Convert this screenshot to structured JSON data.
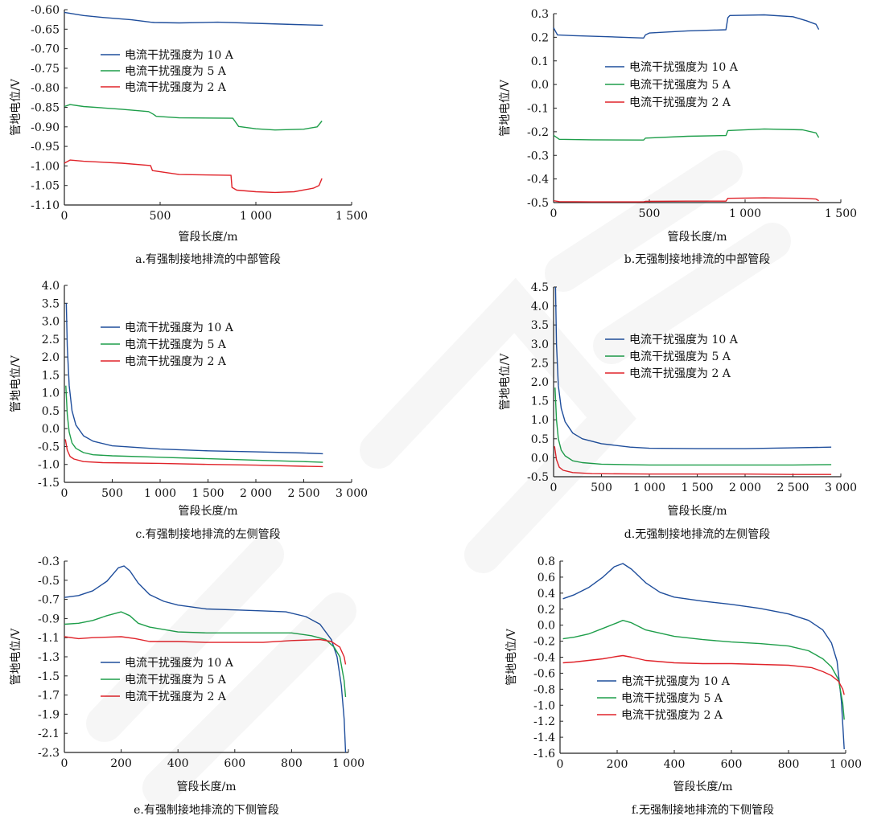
{
  "colors": {
    "blue": "#1f4e9c",
    "green": "#1e9e4a",
    "red": "#e0232a",
    "axis": "#222222"
  },
  "legend_labels": [
    "电流干扰强度为 10 A",
    "电流干扰强度为 5 A",
    "电流干扰强度为 2 A"
  ],
  "chart_data": [
    {
      "id": "a",
      "type": "line",
      "caption": "a.有强制接地排流的中部管段",
      "xlabel": "管段长度/m",
      "ylabel": "管地电位/V",
      "xlim": [
        0,
        1500
      ],
      "ylim": [
        -1.1,
        -0.6
      ],
      "xticks": [
        0,
        500,
        1000,
        1500
      ],
      "xtick_labels": [
        "0",
        "500",
        "1 000",
        "1 500"
      ],
      "yticks": [
        -0.6,
        -0.65,
        -0.7,
        -0.75,
        -0.8,
        -0.85,
        -0.9,
        -0.95,
        -1.0,
        -1.05,
        -1.1
      ],
      "ytick_labels": [
        "-0.60",
        "-0.65",
        "-0.70",
        "-0.75",
        "-0.80",
        "-0.85",
        "-0.90",
        "-0.95",
        "-1.00",
        "-1.05",
        "-1.10"
      ],
      "series": [
        {
          "name": "电流干扰强度为 10 A",
          "color": "blue",
          "x": [
            0,
            100,
            200,
            350,
            450,
            470,
            600,
            800,
            1000,
            1200,
            1350
          ],
          "y": [
            -0.607,
            -0.615,
            -0.62,
            -0.626,
            -0.632,
            -0.633,
            -0.634,
            -0.632,
            -0.635,
            -0.638,
            -0.64
          ]
        },
        {
          "name": "电流干扰强度为 5 A",
          "color": "green",
          "x": [
            0,
            30,
            100,
            300,
            440,
            465,
            480,
            600,
            880,
            890,
            910,
            1000,
            1100,
            1250,
            1320,
            1345
          ],
          "y": [
            -0.848,
            -0.843,
            -0.848,
            -0.855,
            -0.861,
            -0.868,
            -0.873,
            -0.877,
            -0.878,
            -0.885,
            -0.899,
            -0.905,
            -0.908,
            -0.906,
            -0.9,
            -0.885
          ]
        },
        {
          "name": "电流干扰强度为 2 A",
          "color": "red",
          "x": [
            0,
            30,
            100,
            300,
            450,
            460,
            600,
            870,
            875,
            900,
            1000,
            1100,
            1200,
            1300,
            1330,
            1345
          ],
          "y": [
            -0.993,
            -0.985,
            -0.988,
            -0.993,
            -0.999,
            -1.012,
            -1.022,
            -1.024,
            -1.055,
            -1.062,
            -1.066,
            -1.068,
            -1.066,
            -1.057,
            -1.05,
            -1.032
          ]
        }
      ]
    },
    {
      "id": "b",
      "type": "line",
      "caption": "b.无强制接地排流的中部管段",
      "xlabel": "管段长度/m",
      "ylabel": "管地电位/V",
      "xlim": [
        0,
        1500
      ],
      "ylim": [
        -0.5,
        0.3
      ],
      "xticks": [
        0,
        500,
        1000,
        1500
      ],
      "xtick_labels": [
        "0",
        "500",
        "1 000",
        "1 500"
      ],
      "yticks": [
        0.3,
        0.2,
        0.1,
        0.0,
        -0.1,
        -0.2,
        -0.3,
        -0.4,
        -0.5
      ],
      "ytick_labels": [
        "0.3",
        "0.2",
        "0.1",
        "0.0",
        "-0.1",
        "-0.2",
        "-0.3",
        "-0.4",
        "-0.5"
      ],
      "series": [
        {
          "name": "电流干扰强度为 10 A",
          "color": "blue",
          "x": [
            0,
            20,
            100,
            300,
            470,
            480,
            500,
            700,
            900,
            910,
            920,
            1100,
            1250,
            1320,
            1370,
            1385
          ],
          "y": [
            0.24,
            0.21,
            0.207,
            0.202,
            0.197,
            0.21,
            0.218,
            0.227,
            0.232,
            0.283,
            0.292,
            0.295,
            0.287,
            0.27,
            0.255,
            0.233
          ]
        },
        {
          "name": "电流干扰强度为 5 A",
          "color": "green",
          "x": [
            0,
            30,
            200,
            470,
            480,
            700,
            900,
            910,
            1100,
            1300,
            1370,
            1385
          ],
          "y": [
            -0.215,
            -0.232,
            -0.234,
            -0.235,
            -0.227,
            -0.219,
            -0.216,
            -0.195,
            -0.188,
            -0.192,
            -0.205,
            -0.225
          ]
        },
        {
          "name": "电流干扰强度为 2 A",
          "color": "red",
          "x": [
            0,
            30,
            200,
            470,
            480,
            700,
            900,
            910,
            1100,
            1300,
            1370,
            1385
          ],
          "y": [
            -0.492,
            -0.496,
            -0.497,
            -0.497,
            -0.495,
            -0.494,
            -0.494,
            -0.482,
            -0.48,
            -0.482,
            -0.485,
            -0.492
          ]
        }
      ]
    },
    {
      "id": "c",
      "type": "line",
      "caption": "c.有强制接地排流的左侧管段",
      "xlabel": "管段长度/m",
      "ylabel": "管地电位/V",
      "xlim": [
        0,
        3000
      ],
      "ylim": [
        -1.5,
        4.0
      ],
      "xticks": [
        0,
        500,
        1000,
        1500,
        2000,
        2500,
        3000
      ],
      "xtick_labels": [
        "0",
        "500",
        "1 000",
        "1 500",
        "2 000",
        "2 500",
        "3 000"
      ],
      "yticks": [
        4.0,
        3.5,
        3.0,
        2.5,
        2.0,
        1.5,
        1.0,
        0.5,
        0.0,
        -0.5,
        -1.0,
        -1.5
      ],
      "ytick_labels": [
        "4.0",
        "3.5",
        "3.0",
        "2.5",
        "2.0",
        "1.5",
        "1.0",
        "0.5",
        "0.0",
        "-0.5",
        "-1.0",
        "-1.5"
      ],
      "series": [
        {
          "name": "电流干扰强度为 10 A",
          "color": "blue",
          "x": [
            20,
            30,
            50,
            80,
            120,
            200,
            300,
            500,
            1000,
            1500,
            2000,
            2500,
            2700
          ],
          "y": [
            3.5,
            2.3,
            1.2,
            0.5,
            0.1,
            -0.2,
            -0.35,
            -0.48,
            -0.57,
            -0.62,
            -0.65,
            -0.68,
            -0.7
          ]
        },
        {
          "name": "电流干扰强度为 5 A",
          "color": "green",
          "x": [
            15,
            30,
            50,
            80,
            120,
            200,
            300,
            500,
            1000,
            1500,
            2000,
            2500,
            2700
          ],
          "y": [
            1.2,
            0.4,
            -0.1,
            -0.4,
            -0.55,
            -0.67,
            -0.73,
            -0.76,
            -0.8,
            -0.84,
            -0.88,
            -0.92,
            -0.94
          ]
        },
        {
          "name": "电流干扰强度为 2 A",
          "color": "red",
          "x": [
            10,
            30,
            60,
            100,
            200,
            400,
            1000,
            1500,
            2000,
            2500,
            2700
          ],
          "y": [
            -0.3,
            -0.6,
            -0.78,
            -0.85,
            -0.92,
            -0.95,
            -0.97,
            -1.0,
            -1.02,
            -1.05,
            -1.06
          ]
        }
      ]
    },
    {
      "id": "d",
      "type": "line",
      "caption": "d.无强制接地排流的左侧管段",
      "xlabel": "管段长度/m",
      "ylabel": "管地电位/V",
      "xlim": [
        0,
        3000
      ],
      "ylim": [
        -0.5,
        4.5
      ],
      "xticks": [
        0,
        500,
        1000,
        1500,
        2000,
        2500,
        3000
      ],
      "xtick_labels": [
        "0",
        "500",
        "1 000",
        "1 500",
        "2 000",
        "2 500",
        "3 000"
      ],
      "yticks": [
        4.5,
        4.0,
        3.5,
        3.0,
        2.5,
        2.0,
        1.5,
        1.0,
        0.5,
        0.0,
        -0.5
      ],
      "ytick_labels": [
        "4.5",
        "4.0",
        "3.5",
        "3.0",
        "2.5",
        "2.0",
        "1.5",
        "1.0",
        "0.5",
        "0.0",
        "-0.5"
      ],
      "series": [
        {
          "name": "电流干扰强度为 10 A",
          "color": "blue",
          "x": [
            20,
            30,
            50,
            80,
            120,
            200,
            300,
            500,
            800,
            1000,
            1500,
            2000,
            2500,
            2900
          ],
          "y": [
            4.5,
            3.0,
            1.9,
            1.3,
            0.95,
            0.65,
            0.5,
            0.37,
            0.28,
            0.25,
            0.24,
            0.24,
            0.26,
            0.28
          ]
        },
        {
          "name": "电流干扰强度为 5 A",
          "color": "green",
          "x": [
            15,
            30,
            50,
            80,
            120,
            200,
            300,
            500,
            1000,
            1500,
            2000,
            2500,
            2900
          ],
          "y": [
            1.85,
            1.0,
            0.5,
            0.2,
            0.05,
            -0.08,
            -0.13,
            -0.17,
            -0.19,
            -0.19,
            -0.19,
            -0.19,
            -0.18
          ]
        },
        {
          "name": "电流干扰强度为 2 A",
          "color": "red",
          "x": [
            10,
            30,
            60,
            100,
            200,
            400,
            1000,
            1500,
            2000,
            2500,
            2900
          ],
          "y": [
            0.3,
            -0.05,
            -0.25,
            -0.33,
            -0.39,
            -0.42,
            -0.43,
            -0.43,
            -0.43,
            -0.44,
            -0.44
          ]
        }
      ]
    },
    {
      "id": "e",
      "type": "line",
      "caption": "e.有强制接地排流的下侧管段",
      "xlabel": "管段长度/m",
      "ylabel": "管地电位/V",
      "xlim": [
        0,
        1000
      ],
      "ylim": [
        -2.3,
        -0.3
      ],
      "xticks": [
        0,
        200,
        400,
        600,
        800,
        1000
      ],
      "xtick_labels": [
        "0",
        "200",
        "400",
        "600",
        "800",
        "1 000"
      ],
      "yticks": [
        -0.3,
        -0.5,
        -0.7,
        -0.9,
        -1.1,
        -1.3,
        -1.5,
        -1.7,
        -1.9,
        -2.1,
        -2.3
      ],
      "ytick_labels": [
        "-0.3",
        "-0.5",
        "-0.7",
        "-0.9",
        "-1.1",
        "-1.3",
        "-1.5",
        "-1.7",
        "-1.9",
        "-2.1",
        "-2.3"
      ],
      "series": [
        {
          "name": "电流干扰强度为 10 A",
          "color": "blue",
          "x": [
            0,
            50,
            100,
            150,
            190,
            210,
            230,
            260,
            300,
            350,
            400,
            500,
            600,
            700,
            780,
            850,
            900,
            940,
            960,
            975,
            985,
            990
          ],
          "y": [
            -0.68,
            -0.66,
            -0.61,
            -0.51,
            -0.37,
            -0.35,
            -0.4,
            -0.53,
            -0.65,
            -0.72,
            -0.76,
            -0.8,
            -0.81,
            -0.82,
            -0.83,
            -0.88,
            -0.96,
            -1.12,
            -1.3,
            -1.6,
            -1.95,
            -2.3
          ]
        },
        {
          "name": "电流干扰强度为 5 A",
          "color": "green",
          "x": [
            0,
            50,
            100,
            150,
            200,
            230,
            260,
            300,
            400,
            500,
            600,
            700,
            800,
            870,
            920,
            950,
            970,
            985,
            990
          ],
          "y": [
            -0.96,
            -0.95,
            -0.92,
            -0.87,
            -0.83,
            -0.87,
            -0.95,
            -0.99,
            -1.04,
            -1.05,
            -1.05,
            -1.05,
            -1.05,
            -1.08,
            -1.12,
            -1.2,
            -1.3,
            -1.55,
            -1.72
          ]
        },
        {
          "name": "电流干扰强度为 2 A",
          "color": "red",
          "x": [
            0,
            50,
            100,
            200,
            250,
            300,
            400,
            500,
            600,
            700,
            800,
            900,
            940,
            970,
            985,
            990
          ],
          "y": [
            -1.09,
            -1.11,
            -1.1,
            -1.09,
            -1.11,
            -1.14,
            -1.14,
            -1.15,
            -1.15,
            -1.15,
            -1.13,
            -1.12,
            -1.14,
            -1.2,
            -1.3,
            -1.38
          ]
        }
      ]
    },
    {
      "id": "f",
      "type": "line",
      "caption": "f.无强制接地排流的下侧管段",
      "xlabel": "管段长度/m",
      "ylabel": "管地电位/V",
      "xlim": [
        0,
        1000
      ],
      "ylim": [
        -1.6,
        0.8
      ],
      "xticks": [
        0,
        200,
        400,
        600,
        800,
        1000
      ],
      "xtick_labels": [
        "0",
        "200",
        "400",
        "600",
        "800",
        "1 000"
      ],
      "yticks": [
        0.8,
        0.6,
        0.4,
        0.2,
        0.0,
        -0.2,
        -0.4,
        -0.6,
        -0.8,
        -1.0,
        -1.2,
        -1.4,
        -1.6
      ],
      "ytick_labels": [
        "0.8",
        "0.6",
        "0.4",
        "0.2",
        "0.0",
        "-0.2",
        "-0.4",
        "-0.6",
        "-0.8",
        "-1.0",
        "-1.2",
        "-1.4",
        "-1.6"
      ],
      "series": [
        {
          "name": "电流干扰强度为 10 A",
          "color": "blue",
          "x": [
            10,
            50,
            100,
            150,
            190,
            220,
            250,
            300,
            350,
            400,
            500,
            600,
            700,
            800,
            870,
            920,
            950,
            970,
            985,
            995
          ],
          "y": [
            0.33,
            0.38,
            0.47,
            0.6,
            0.73,
            0.77,
            0.7,
            0.53,
            0.41,
            0.35,
            0.3,
            0.26,
            0.21,
            0.14,
            0.06,
            -0.06,
            -0.22,
            -0.45,
            -0.95,
            -1.55
          ]
        },
        {
          "name": "电流干扰强度为 5 A",
          "color": "green",
          "x": [
            10,
            50,
            100,
            150,
            200,
            220,
            250,
            300,
            400,
            500,
            600,
            700,
            800,
            870,
            920,
            950,
            975,
            990,
            995
          ],
          "y": [
            -0.17,
            -0.15,
            -0.11,
            -0.04,
            0.03,
            0.06,
            0.03,
            -0.06,
            -0.14,
            -0.18,
            -0.21,
            -0.23,
            -0.26,
            -0.32,
            -0.42,
            -0.52,
            -0.68,
            -0.98,
            -1.18
          ]
        },
        {
          "name": "电流干扰强度为 2 A",
          "color": "red",
          "x": [
            10,
            50,
            100,
            150,
            200,
            220,
            250,
            300,
            400,
            500,
            600,
            700,
            800,
            880,
            920,
            950,
            975,
            990,
            995
          ],
          "y": [
            -0.47,
            -0.46,
            -0.44,
            -0.42,
            -0.39,
            -0.38,
            -0.4,
            -0.44,
            -0.47,
            -0.48,
            -0.48,
            -0.49,
            -0.5,
            -0.53,
            -0.58,
            -0.63,
            -0.7,
            -0.8,
            -0.87
          ]
        }
      ]
    }
  ]
}
